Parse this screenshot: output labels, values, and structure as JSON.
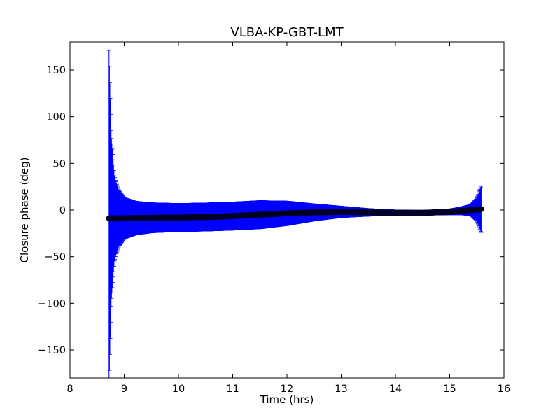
{
  "chart_data": {
    "type": "scatter",
    "title": "VLBA-KP-GBT-LMT",
    "xlabel": "Time (hrs)",
    "ylabel": "Closure phase (deg)",
    "xlim": [
      8,
      16
    ],
    "ylim": [
      -180,
      180
    ],
    "xticks": [
      8,
      9,
      10,
      11,
      12,
      13,
      14,
      15,
      16
    ],
    "yticks": [
      -150,
      -100,
      -50,
      0,
      50,
      100,
      150
    ],
    "xtick_labels": [
      "8",
      "9",
      "10",
      "11",
      "12",
      "13",
      "14",
      "15",
      "16"
    ],
    "ytick_labels": [
      "−150",
      "−100",
      "−50",
      "0",
      "50",
      "100",
      "150"
    ],
    "grid": false,
    "legend": "none",
    "series": [
      {
        "x": [
          8.72,
          8.76,
          8.82,
          8.9,
          9.0,
          9.2,
          9.5,
          10.0,
          10.5,
          11.0,
          11.5,
          12.0,
          12.5,
          13.0,
          13.5,
          14.0,
          14.5,
          15.0,
          15.2,
          15.4,
          15.5,
          15.58
        ],
        "y": [
          -9,
          -9,
          -9,
          -9,
          -8.8,
          -8.6,
          -8.3,
          -8,
          -7.5,
          -6.5,
          -5,
          -3.5,
          -2.5,
          -2,
          -2.5,
          -3,
          -3,
          -2,
          -1,
          0,
          0.5,
          1
        ],
        "yerr": [
          180,
          90,
          45,
          30,
          22,
          18,
          16,
          15,
          15,
          15,
          15,
          13,
          9,
          6,
          4,
          3,
          2.5,
          3,
          4,
          6,
          12,
          25
        ]
      }
    ],
    "colors": {
      "errorbar": "#0000ff",
      "marker": "#000000",
      "marker_edge": "#000033"
    }
  }
}
